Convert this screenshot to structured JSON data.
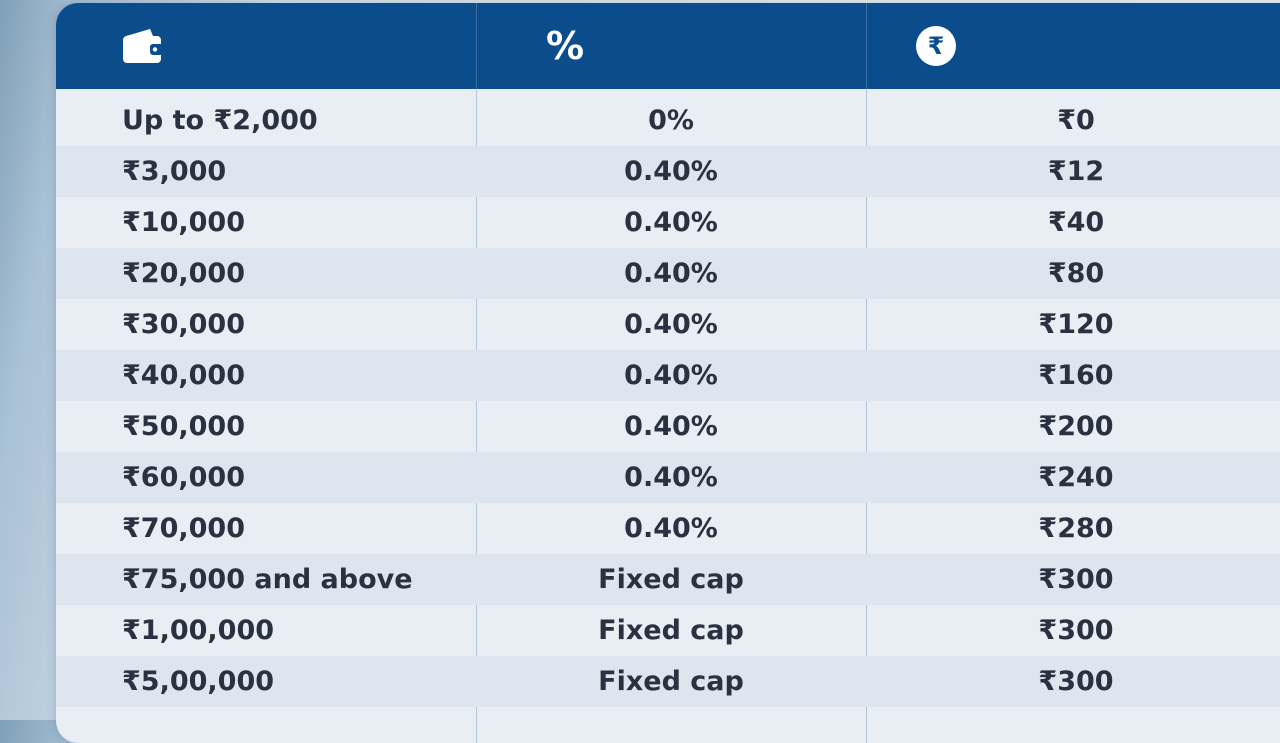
{
  "header": {
    "col1_icon": "wallet-icon",
    "col2_symbol": "%",
    "col3_icon": "rupee-coin-icon",
    "col3_symbol": "₹"
  },
  "rows": [
    {
      "amount": "Up to ₹2,000",
      "rate": "0%",
      "charge": "₹0"
    },
    {
      "amount": "₹3,000",
      "rate": "0.40%",
      "charge": "₹12"
    },
    {
      "amount": "₹10,000",
      "rate": "0.40%",
      "charge": "₹40"
    },
    {
      "amount": "₹20,000",
      "rate": "0.40%",
      "charge": "₹80"
    },
    {
      "amount": "₹30,000",
      "rate": "0.40%",
      "charge": "₹120"
    },
    {
      "amount": "₹40,000",
      "rate": "0.40%",
      "charge": "₹160"
    },
    {
      "amount": "₹50,000",
      "rate": "0.40%",
      "charge": "₹200"
    },
    {
      "amount": "₹60,000",
      "rate": "0.40%",
      "charge": "₹240"
    },
    {
      "amount": "₹70,000",
      "rate": "0.40%",
      "charge": "₹280"
    },
    {
      "amount": "₹75,000 and above",
      "rate": "Fixed cap",
      "charge": "₹300"
    },
    {
      "amount": "₹1,00,000",
      "rate": "Fixed cap",
      "charge": "₹300"
    },
    {
      "amount": "₹5,00,000",
      "rate": "Fixed cap",
      "charge": "₹300"
    }
  ]
}
